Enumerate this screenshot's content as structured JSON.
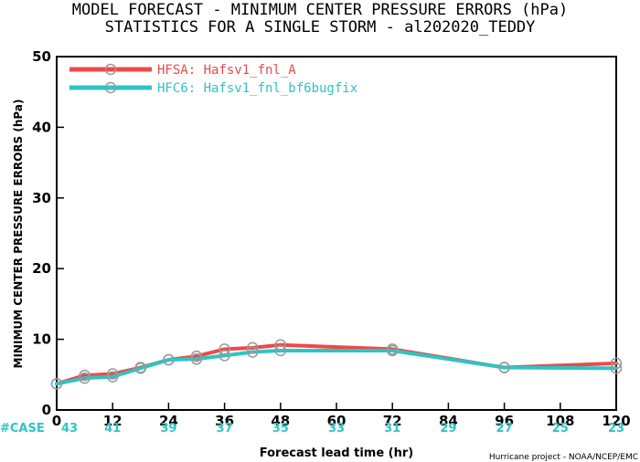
{
  "chart_data": {
    "type": "line",
    "title": "MODEL FORECAST - MINIMUM CENTER PRESSURE ERRORS (hPa)",
    "subtitle": "STATISTICS FOR A SINGLE STORM - al202020_TEDDY",
    "xlabel": "Forecast lead time (hr)",
    "ylabel": "MINIMUM CENTER PRESSURE ERRORS (hPa)",
    "xlim": [
      0,
      120
    ],
    "ylim": [
      0,
      50
    ],
    "x_ticks": [
      "0",
      "12",
      "24",
      "36",
      "48",
      "60",
      "72",
      "84",
      "96",
      "108",
      "120"
    ],
    "y_ticks": [
      "0",
      "10",
      "20",
      "30",
      "40",
      "50"
    ],
    "grid": false,
    "legend_position": "top-left",
    "series": [
      {
        "name": "HFSA: Hafsv1_fnl_A",
        "color": "#f04848",
        "x": [
          0,
          6,
          12,
          18,
          24,
          30,
          36,
          42,
          48,
          72,
          96,
          120
        ],
        "y": [
          3.7,
          4.9,
          5.1,
          6.0,
          7.1,
          7.6,
          8.6,
          8.8,
          9.2,
          8.6,
          6.0,
          6.6
        ]
      },
      {
        "name": "HFC6: Hafsv1_fnl_bf6bugfix",
        "color": "#2ec4c4",
        "x": [
          0,
          6,
          12,
          18,
          24,
          30,
          36,
          42,
          48,
          72,
          96,
          120
        ],
        "y": [
          3.7,
          4.5,
          4.7,
          5.9,
          7.1,
          7.2,
          7.7,
          8.2,
          8.4,
          8.4,
          6.0,
          5.9
        ]
      }
    ],
    "case_label": "#CASE",
    "case_counts": [
      {
        "x": 0,
        "n": "43"
      },
      {
        "x": 12,
        "n": "41"
      },
      {
        "x": 24,
        "n": "39"
      },
      {
        "x": 36,
        "n": "37"
      },
      {
        "x": 48,
        "n": "35"
      },
      {
        "x": 60,
        "n": "33"
      },
      {
        "x": 72,
        "n": "31"
      },
      {
        "x": 84,
        "n": "29"
      },
      {
        "x": 96,
        "n": "27"
      },
      {
        "x": 108,
        "n": "25"
      },
      {
        "x": 120,
        "n": "23"
      }
    ],
    "credit": "Hurricane project - NOAA/NCEP/EMC"
  }
}
